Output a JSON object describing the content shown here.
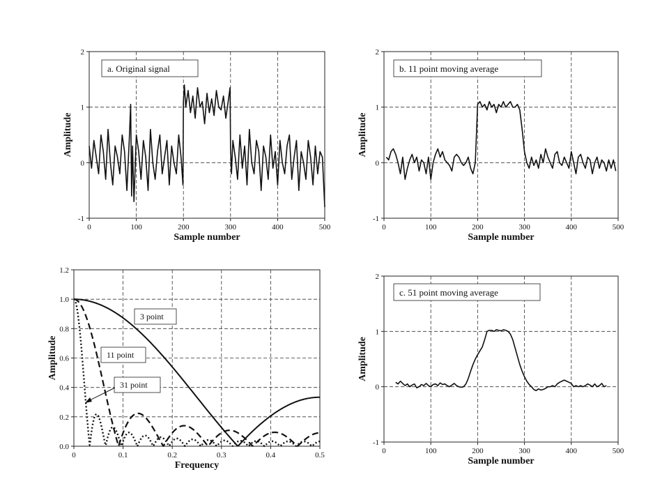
{
  "chart_data": [
    {
      "id": "a",
      "type": "line",
      "title": "a.  Original signal",
      "xlabel": "Sample number",
      "ylabel": "Amplitude",
      "xlim": [
        0,
        500
      ],
      "ylim": [
        -1,
        2
      ],
      "xticks": [
        0,
        100,
        200,
        300,
        400,
        500
      ],
      "yticks": [
        -1,
        0,
        1,
        2
      ],
      "legend_box": "top-left",
      "series": [
        {
          "x": [
            0,
            5,
            10,
            15,
            20,
            25,
            30,
            35,
            40,
            45,
            50,
            55,
            60,
            65,
            70,
            75,
            80,
            85,
            88,
            90,
            92,
            95,
            100,
            105,
            110,
            115,
            120,
            125,
            130,
            135,
            140,
            145,
            150,
            155,
            160,
            165,
            170,
            175,
            180,
            185,
            190,
            195,
            199,
            200,
            202,
            205,
            210,
            215,
            220,
            225,
            230,
            235,
            240,
            245,
            250,
            255,
            260,
            265,
            270,
            275,
            280,
            285,
            290,
            295,
            299,
            300,
            302,
            305,
            310,
            315,
            320,
            325,
            330,
            335,
            340,
            345,
            350,
            355,
            360,
            365,
            370,
            375,
            380,
            385,
            390,
            395,
            400,
            405,
            410,
            415,
            420,
            425,
            430,
            435,
            440,
            445,
            450,
            455,
            460,
            465,
            470,
            475,
            480,
            485,
            490,
            495,
            500
          ],
          "y": [
            0.3,
            -0.1,
            0.4,
            0.1,
            -0.2,
            0.5,
            0.2,
            -0.3,
            0.6,
            0.0,
            -0.4,
            0.3,
            0.1,
            -0.2,
            0.5,
            0.2,
            -0.5,
            0.4,
            1.05,
            -0.6,
            0.3,
            -0.7,
            0.5,
            0.2,
            -0.3,
            0.4,
            0.1,
            -0.5,
            0.6,
            0.0,
            -0.3,
            0.2,
            0.5,
            -0.2,
            0.1,
            0.4,
            -0.4,
            0.3,
            0.0,
            -0.2,
            0.5,
            0.1,
            -0.4,
            1.1,
            1.4,
            1.0,
            1.3,
            0.9,
            1.2,
            0.8,
            1.35,
            1.0,
            1.1,
            0.7,
            1.25,
            0.9,
            1.15,
            0.85,
            1.3,
            1.0,
            0.95,
            1.2,
            0.8,
            1.1,
            1.35,
            0.3,
            -0.2,
            0.4,
            0.1,
            -0.3,
            0.5,
            -0.1,
            0.3,
            -0.4,
            0.6,
            0.0,
            -0.2,
            0.4,
            0.2,
            -0.5,
            0.3,
            0.1,
            -0.3,
            0.5,
            -0.1,
            0.2,
            -0.4,
            0.4,
            0.0,
            -0.2,
            0.3,
            0.5,
            -0.3,
            0.1,
            0.4,
            -0.5,
            0.2,
            0.0,
            -0.3,
            0.4,
            0.1,
            -0.4,
            0.3,
            -0.2,
            0.2,
            0.1,
            -0.8
          ]
        }
      ]
    },
    {
      "id": "b",
      "type": "line",
      "title": "b.  11 point moving average",
      "xlabel": "Sample number",
      "ylabel": "Amplitude",
      "xlim": [
        0,
        500
      ],
      "ylim": [
        -1,
        2
      ],
      "xticks": [
        0,
        100,
        200,
        300,
        400,
        500
      ],
      "yticks": [
        -1,
        0,
        1,
        2
      ],
      "legend_box": "top-left",
      "series": [
        {
          "x": [
            5,
            10,
            15,
            20,
            25,
            30,
            35,
            40,
            45,
            50,
            55,
            60,
            65,
            70,
            75,
            80,
            85,
            90,
            95,
            100,
            105,
            110,
            115,
            120,
            125,
            130,
            135,
            140,
            145,
            150,
            155,
            160,
            165,
            170,
            175,
            180,
            185,
            190,
            195,
            200,
            205,
            210,
            215,
            220,
            225,
            230,
            235,
            240,
            245,
            250,
            255,
            260,
            265,
            270,
            275,
            280,
            285,
            290,
            295,
            300,
            305,
            310,
            315,
            320,
            325,
            330,
            335,
            340,
            345,
            350,
            355,
            360,
            365,
            370,
            375,
            380,
            385,
            390,
            395,
            400,
            405,
            410,
            415,
            420,
            425,
            430,
            435,
            440,
            445,
            450,
            455,
            460,
            465,
            470,
            475,
            480,
            485,
            490,
            495
          ],
          "y": [
            0.1,
            0.05,
            0.2,
            0.25,
            0.15,
            0.0,
            -0.2,
            0.1,
            -0.3,
            -0.1,
            0.05,
            0.15,
            0.0,
            0.1,
            -0.15,
            0.05,
            0.0,
            -0.2,
            0.1,
            -0.3,
            0.0,
            0.15,
            0.25,
            0.1,
            0.2,
            0.05,
            0.0,
            -0.05,
            -0.15,
            0.1,
            0.15,
            0.1,
            0.0,
            -0.05,
            0.0,
            0.1,
            -0.1,
            -0.2,
            0.0,
            1.05,
            1.1,
            1.0,
            1.05,
            0.95,
            1.1,
            1.0,
            1.05,
            0.9,
            1.05,
            1.0,
            1.1,
            1.0,
            1.05,
            1.1,
            1.0,
            1.0,
            1.05,
            0.95,
            0.6,
            0.2,
            0.0,
            -0.1,
            0.1,
            -0.05,
            0.05,
            -0.1,
            0.15,
            0.0,
            0.25,
            0.1,
            0.0,
            -0.1,
            0.15,
            0.2,
            0.0,
            -0.05,
            0.1,
            0.0,
            -0.1,
            0.2,
            0.0,
            -0.2,
            0.1,
            0.15,
            0.0,
            -0.1,
            0.1,
            0.05,
            -0.2,
            0.0,
            0.1,
            -0.1,
            0.05,
            0.0,
            -0.15,
            0.05,
            -0.1,
            0.05,
            -0.15
          ]
        }
      ]
    },
    {
      "id": "freq",
      "type": "line",
      "title": "",
      "xlabel": "Frequency",
      "ylabel": "Amplitude",
      "xlim": [
        0,
        0.5
      ],
      "ylim": [
        0,
        1.2
      ],
      "xticks": [
        0,
        0.1,
        0.2,
        0.3,
        0.4,
        0.5
      ],
      "ytick_labels": [
        "0.0",
        "0.2",
        "0.4",
        "0.6",
        "0.8",
        "1.0",
        "1.2"
      ],
      "yticks": [
        0,
        0.2,
        0.4,
        0.6,
        0.8,
        1.0,
        1.2
      ],
      "series": [
        {
          "label": "3 point",
          "N": 3,
          "style": "solid"
        },
        {
          "label": "11 point",
          "N": 11,
          "style": "dashed"
        },
        {
          "label": "31 point",
          "N": 31,
          "style": "dotted"
        }
      ]
    },
    {
      "id": "c",
      "type": "line",
      "title": "c.  51 point moving average",
      "xlabel": "Sample number",
      "ylabel": "Amplitude",
      "xlim": [
        0,
        500
      ],
      "ylim": [
        -1,
        2
      ],
      "xticks": [
        0,
        100,
        200,
        300,
        400,
        500
      ],
      "yticks": [
        -1,
        0,
        1,
        2
      ],
      "legend_box": "top-left",
      "series": [
        {
          "x": [
            25,
            30,
            35,
            40,
            45,
            50,
            55,
            60,
            65,
            70,
            75,
            80,
            85,
            90,
            95,
            100,
            105,
            110,
            115,
            120,
            125,
            130,
            135,
            140,
            145,
            150,
            155,
            160,
            165,
            170,
            175,
            180,
            185,
            190,
            195,
            200,
            205,
            210,
            215,
            220,
            225,
            230,
            235,
            240,
            245,
            250,
            255,
            260,
            265,
            270,
            275,
            280,
            285,
            290,
            295,
            300,
            305,
            310,
            315,
            320,
            325,
            330,
            335,
            340,
            345,
            350,
            355,
            360,
            365,
            370,
            375,
            380,
            385,
            390,
            395,
            400,
            405,
            410,
            415,
            420,
            425,
            430,
            435,
            440,
            445,
            450,
            455,
            460,
            465,
            470,
            475
          ],
          "y": [
            0.08,
            0.05,
            0.1,
            0.06,
            0.02,
            0.05,
            0.0,
            0.03,
            0.05,
            -0.02,
            0.0,
            0.04,
            0.02,
            0.06,
            0.02,
            0.0,
            0.04,
            0.05,
            0.02,
            0.07,
            0.04,
            0.05,
            0.02,
            0.0,
            0.03,
            0.06,
            0.02,
            0.0,
            -0.01,
            0.0,
            0.05,
            0.15,
            0.28,
            0.4,
            0.5,
            0.58,
            0.65,
            0.72,
            0.85,
            1.0,
            1.02,
            1.02,
            1.0,
            1.03,
            1.02,
            1.01,
            1.03,
            1.02,
            1.0,
            0.95,
            0.85,
            0.7,
            0.55,
            0.4,
            0.28,
            0.18,
            0.1,
            0.04,
            0.0,
            -0.05,
            -0.07,
            -0.04,
            -0.06,
            -0.05,
            -0.03,
            0.0,
            0.0,
            0.02,
            0.0,
            0.05,
            0.08,
            0.1,
            0.12,
            0.1,
            0.08,
            0.06,
            0.0,
            0.02,
            0.0,
            0.02,
            0.0,
            0.02,
            0.05,
            0.03,
            0.0,
            0.05,
            0.0,
            0.02,
            0.06,
            0.0,
            0.02
          ]
        }
      ]
    }
  ]
}
